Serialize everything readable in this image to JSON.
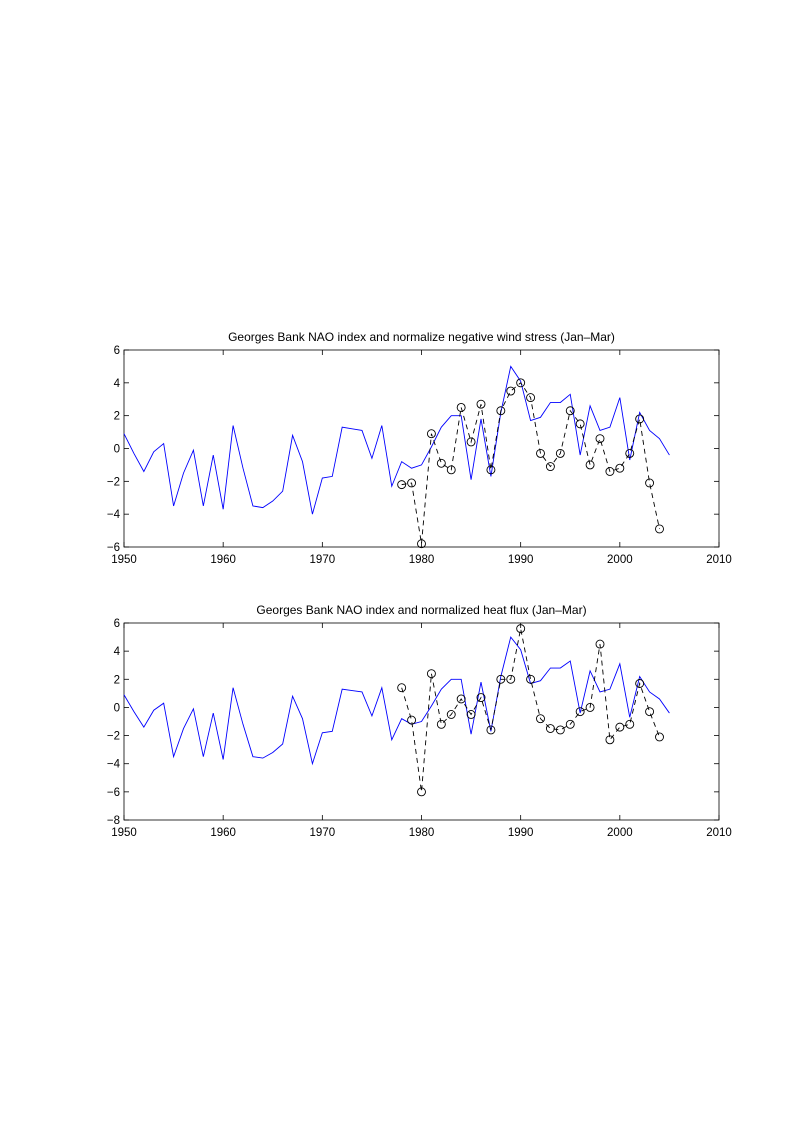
{
  "chart_data": [
    {
      "type": "line",
      "title": "Georges Bank NAO index and normalize negative wind stress (Jan–Mar)",
      "xlabel": "",
      "ylabel": "",
      "xlim": [
        1950,
        2010
      ],
      "ylim": [
        -6,
        6
      ],
      "xticks": [
        1950,
        1960,
        1970,
        1980,
        1990,
        2000,
        2010
      ],
      "yticks": [
        -6,
        -4,
        -2,
        0,
        2,
        4,
        6
      ],
      "grid": false,
      "series": [
        {
          "style": "solid",
          "color": "#0000ff",
          "markers": "none",
          "x": [
            1950,
            1951,
            1952,
            1953,
            1954,
            1955,
            1956,
            1957,
            1958,
            1959,
            1960,
            1961,
            1962,
            1963,
            1964,
            1965,
            1966,
            1967,
            1968,
            1969,
            1970,
            1971,
            1972,
            1973,
            1974,
            1975,
            1976,
            1977,
            1978,
            1979,
            1980,
            1981,
            1982,
            1983,
            1984,
            1985,
            1986,
            1987,
            1988,
            1989,
            1990,
            1991,
            1992,
            1993,
            1994,
            1995,
            1996,
            1997,
            1998,
            1999,
            2000,
            2001,
            2002,
            2003,
            2004,
            2005
          ],
          "y": [
            0.9,
            -0.3,
            -1.4,
            -0.2,
            0.3,
            -3.5,
            -1.5,
            -0.1,
            -3.5,
            -0.4,
            -3.7,
            1.4,
            -1.2,
            -3.5,
            -3.6,
            -3.2,
            -2.6,
            0.8,
            -0.8,
            -4.0,
            -1.8,
            -1.7,
            1.3,
            1.2,
            1.1,
            -0.6,
            1.4,
            -2.3,
            -0.8,
            -1.2,
            -1.0,
            0.1,
            1.3,
            2.0,
            2.0,
            -1.9,
            1.8,
            -1.7,
            2.2,
            5.0,
            4.1,
            1.7,
            1.9,
            2.8,
            2.8,
            3.3,
            -0.4,
            2.6,
            1.1,
            1.3,
            3.1,
            -0.7,
            2.2,
            1.1,
            0.6,
            -0.4
          ]
        },
        {
          "style": "dashed",
          "color": "#000000",
          "markers": "circle",
          "x": [
            1978,
            1979,
            1980,
            1981,
            1982,
            1983,
            1984,
            1985,
            1986,
            1987,
            1988,
            1989,
            1990,
            1991,
            1992,
            1993,
            1994,
            1995,
            1996,
            1997,
            1998,
            1999,
            2000,
            2001,
            2002,
            2003,
            2004
          ],
          "y": [
            -2.2,
            -2.1,
            -5.8,
            0.9,
            -0.9,
            -1.3,
            2.5,
            0.4,
            2.7,
            -1.3,
            2.3,
            3.5,
            4.0,
            3.1,
            -0.3,
            -1.1,
            -0.3,
            2.3,
            1.5,
            -1.0,
            0.6,
            -1.4,
            -1.2,
            -0.3,
            1.8,
            -2.1,
            -4.9
          ]
        }
      ]
    },
    {
      "type": "line",
      "title": "Georges Bank NAO index and normalized heat flux (Jan–Mar)",
      "xlabel": "",
      "ylabel": "",
      "xlim": [
        1950,
        2010
      ],
      "ylim": [
        -8,
        6
      ],
      "xticks": [
        1950,
        1960,
        1970,
        1980,
        1990,
        2000,
        2010
      ],
      "yticks": [
        -8,
        -6,
        -4,
        -2,
        0,
        2,
        4,
        6
      ],
      "grid": false,
      "series": [
        {
          "style": "solid",
          "color": "#0000ff",
          "markers": "none",
          "x": [
            1950,
            1951,
            1952,
            1953,
            1954,
            1955,
            1956,
            1957,
            1958,
            1959,
            1960,
            1961,
            1962,
            1963,
            1964,
            1965,
            1966,
            1967,
            1968,
            1969,
            1970,
            1971,
            1972,
            1973,
            1974,
            1975,
            1976,
            1977,
            1978,
            1979,
            1980,
            1981,
            1982,
            1983,
            1984,
            1985,
            1986,
            1987,
            1988,
            1989,
            1990,
            1991,
            1992,
            1993,
            1994,
            1995,
            1996,
            1997,
            1998,
            1999,
            2000,
            2001,
            2002,
            2003,
            2004,
            2005
          ],
          "y": [
            0.9,
            -0.3,
            -1.4,
            -0.2,
            0.3,
            -3.5,
            -1.5,
            -0.1,
            -3.5,
            -0.4,
            -3.7,
            1.4,
            -1.2,
            -3.5,
            -3.6,
            -3.2,
            -2.6,
            0.8,
            -0.8,
            -4.0,
            -1.8,
            -1.7,
            1.3,
            1.2,
            1.1,
            -0.6,
            1.4,
            -2.3,
            -0.8,
            -1.2,
            -1.0,
            0.1,
            1.3,
            2.0,
            2.0,
            -1.9,
            1.8,
            -1.7,
            2.2,
            5.0,
            4.1,
            1.7,
            1.9,
            2.8,
            2.8,
            3.3,
            -0.4,
            2.6,
            1.1,
            1.3,
            3.1,
            -0.7,
            2.2,
            1.1,
            0.6,
            -0.4
          ]
        },
        {
          "style": "dashed",
          "color": "#000000",
          "markers": "circle",
          "x": [
            1978,
            1979,
            1980,
            1981,
            1982,
            1983,
            1984,
            1985,
            1986,
            1987,
            1988,
            1989,
            1990,
            1991,
            1992,
            1993,
            1994,
            1995,
            1996,
            1997,
            1998,
            1999,
            2000,
            2001,
            2002,
            2003,
            2004
          ],
          "y": [
            1.4,
            -0.9,
            -6.0,
            2.4,
            -1.2,
            -0.5,
            0.6,
            -0.5,
            0.7,
            -1.6,
            2.0,
            2.0,
            5.6,
            2.0,
            -0.8,
            -1.5,
            -1.6,
            -1.2,
            -0.3,
            0.0,
            4.5,
            -2.3,
            -1.4,
            -1.2,
            1.7,
            -0.3,
            -2.1
          ]
        }
      ]
    }
  ]
}
